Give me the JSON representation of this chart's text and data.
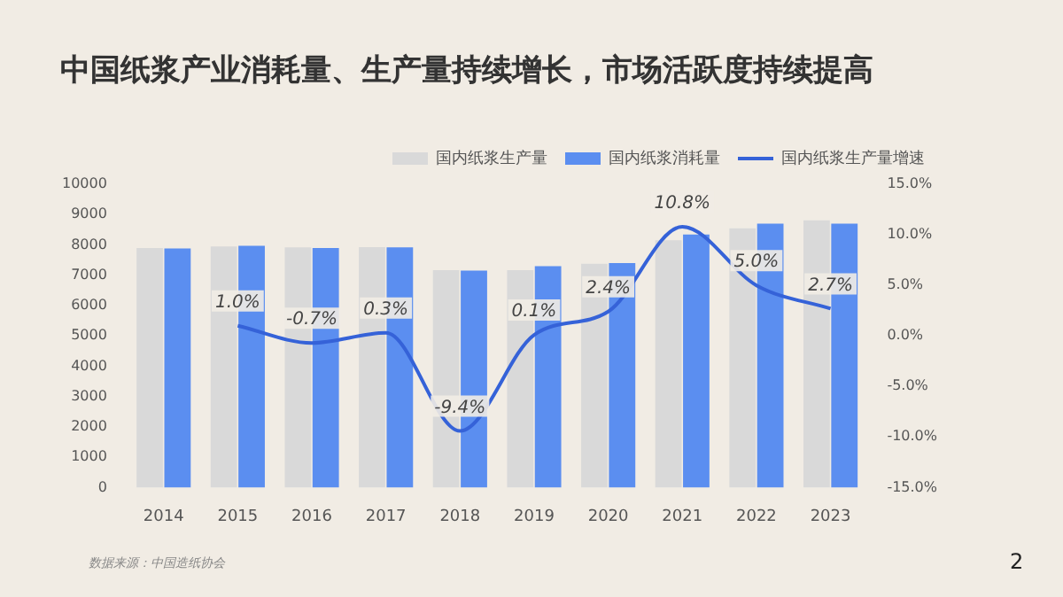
{
  "chart_data": {
    "type": "bar",
    "title": "中国纸浆产业消耗量、生产量持续增长，市场活跃度持续提高",
    "categories": [
      "2014",
      "2015",
      "2016",
      "2017",
      "2018",
      "2019",
      "2020",
      "2021",
      "2022",
      "2023"
    ],
    "series": [
      {
        "name": "国内纸浆生产量",
        "color": "#d9d9d9",
        "values": [
          7900,
          7950,
          7920,
          7930,
          7170,
          7170,
          7380,
          8150,
          8550,
          8810
        ]
      },
      {
        "name": "国内纸浆消耗量",
        "color": "#5b8ef0",
        "values": [
          7880,
          7970,
          7900,
          7920,
          7150,
          7300,
          7400,
          8340,
          8700,
          8700
        ]
      },
      {
        "name": "国内纸浆生产量增速",
        "type": "line",
        "axis": "y2",
        "color": "#3562d8",
        "values": [
          null,
          1.0,
          -0.7,
          0.3,
          -9.4,
          0.1,
          2.4,
          10.8,
          5.0,
          2.7
        ],
        "value_labels": [
          null,
          "1.0%",
          "-0.7%",
          "0.3%",
          "-9.4%",
          "0.1%",
          "2.4%",
          "10.8%",
          "5.0%",
          "2.7%"
        ]
      }
    ],
    "ylim": [
      0,
      10000
    ],
    "yticks": [
      0,
      1000,
      2000,
      3000,
      4000,
      5000,
      6000,
      7000,
      8000,
      9000,
      10000
    ],
    "y2lim": [
      -15,
      15
    ],
    "y2ticks": [
      {
        "value": -15,
        "label": "-15.0%"
      },
      {
        "value": -10,
        "label": "-10.0%"
      },
      {
        "value": -5,
        "label": "-5.0%"
      },
      {
        "value": 0,
        "label": "0.0%"
      },
      {
        "value": 5,
        "label": "5.0%"
      },
      {
        "value": 10,
        "label": "10.0%"
      },
      {
        "value": 15,
        "label": "15.0%"
      }
    ],
    "legend": "top right",
    "grid": false,
    "marker": "none",
    "annotations": [
      "数据来源：中国造纸协会",
      "2"
    ]
  }
}
